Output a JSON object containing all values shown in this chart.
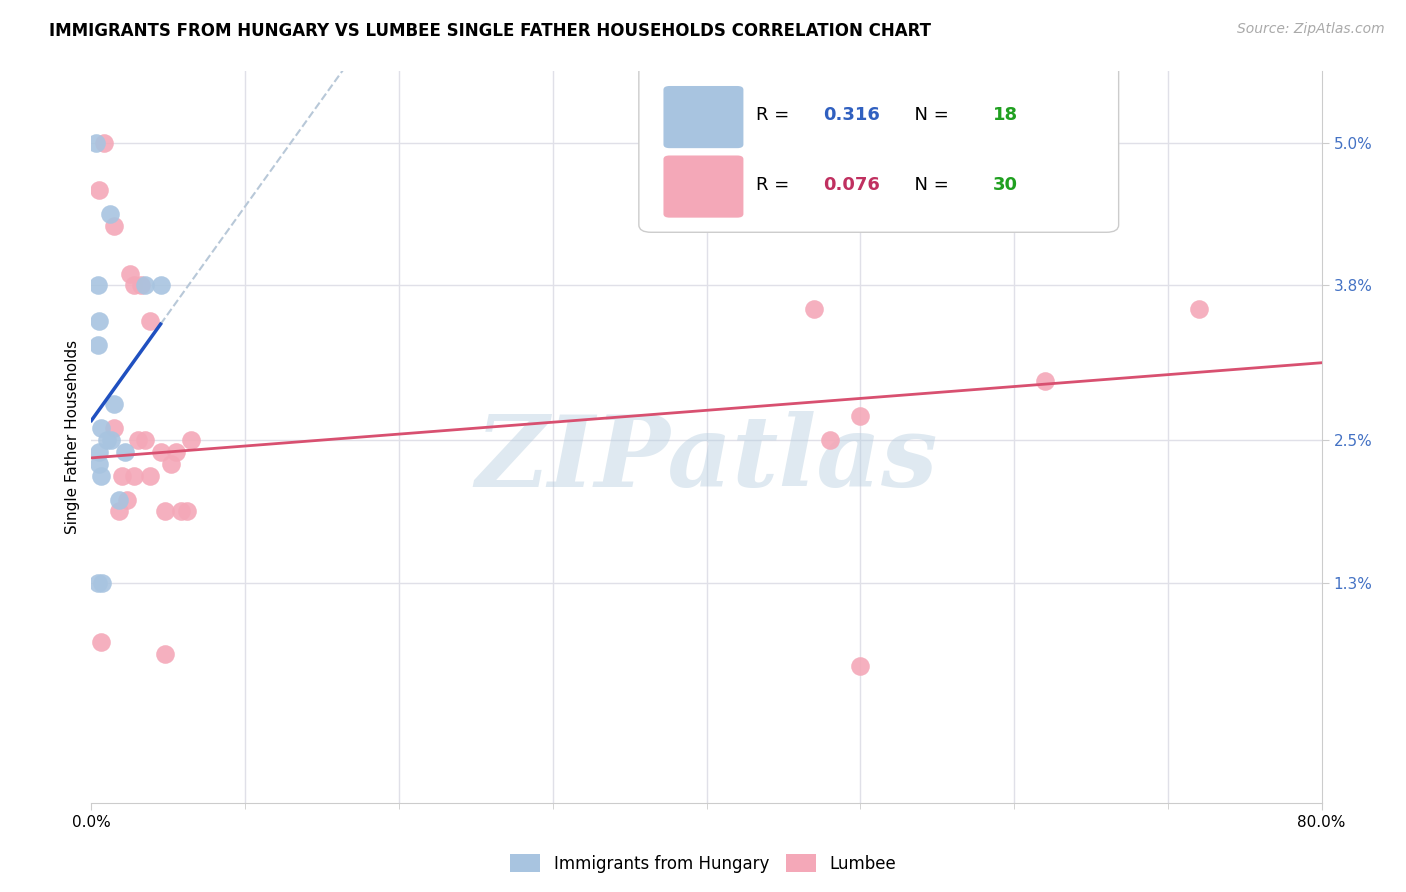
{
  "title": "IMMIGRANTS FROM HUNGARY VS LUMBEE SINGLE FATHER HOUSEHOLDS CORRELATION CHART",
  "source": "Source: ZipAtlas.com",
  "ylabel": "Single Father Households",
  "xlim": [
    0.0,
    80.0
  ],
  "ylim": [
    -0.55,
    5.6
  ],
  "blue_R": "0.316",
  "blue_N": "18",
  "pink_R": "0.076",
  "pink_N": "30",
  "blue_color": "#a8c4e0",
  "pink_color": "#f4a8b8",
  "blue_line_color": "#2050c0",
  "pink_line_color": "#d85070",
  "dash_color": "#b8c8d8",
  "blue_scatter_x": [
    0.3,
    1.2,
    0.4,
    0.5,
    0.4,
    1.5,
    3.5,
    0.6,
    1.0,
    1.3,
    0.5,
    2.2,
    0.5,
    0.6,
    4.5,
    1.8,
    0.4,
    0.7
  ],
  "blue_scatter_y": [
    5.0,
    4.4,
    3.8,
    3.5,
    3.3,
    2.8,
    3.8,
    2.6,
    2.5,
    2.5,
    2.4,
    2.4,
    2.3,
    2.2,
    3.8,
    2.0,
    1.3,
    1.3
  ],
  "pink_scatter_x": [
    0.8,
    0.5,
    1.5,
    2.5,
    3.2,
    2.8,
    3.8,
    3.5,
    4.5,
    5.5,
    5.2,
    2.0,
    3.8,
    2.3,
    4.8,
    5.8,
    6.5,
    6.2,
    1.5,
    3.0,
    47.0,
    50.0,
    48.0,
    62.0,
    72.0,
    2.8,
    1.8,
    0.6,
    4.8,
    50.0
  ],
  "pink_scatter_y": [
    5.0,
    4.6,
    4.3,
    3.9,
    3.8,
    3.8,
    3.5,
    2.5,
    2.4,
    2.4,
    2.3,
    2.2,
    2.2,
    2.0,
    1.9,
    1.9,
    2.5,
    1.9,
    2.6,
    2.5,
    3.6,
    2.7,
    2.5,
    3.0,
    3.6,
    2.2,
    1.9,
    0.8,
    0.7,
    0.6
  ],
  "ytick_vals": [
    1.3,
    2.5,
    3.8,
    5.0
  ],
  "ytick_labels": [
    "1.3%",
    "2.5%",
    "3.8%",
    "5.0%"
  ],
  "xtick_vals": [
    0.0,
    80.0
  ],
  "xtick_labels": [
    "0.0%",
    "80.0%"
  ],
  "xtick_minor_vals": [
    10.0,
    20.0,
    30.0,
    40.0,
    50.0,
    60.0,
    70.0
  ],
  "watermark_text": "ZIPatlas",
  "watermark_fontsize": 72,
  "legend_blue_label": "Immigrants from Hungary",
  "legend_pink_label": "Lumbee",
  "background_color": "#ffffff",
  "grid_color": "#e0e0e8",
  "title_fontsize": 12,
  "axis_label_fontsize": 11,
  "tick_fontsize": 11,
  "legend_fontsize": 13,
  "source_fontsize": 10,
  "scatter_size": 180,
  "blue_trend_x_end": 4.5,
  "blue_dash_x_end": 18.0,
  "pink_trend_start_y": 2.35,
  "pink_trend_end_y": 3.15
}
